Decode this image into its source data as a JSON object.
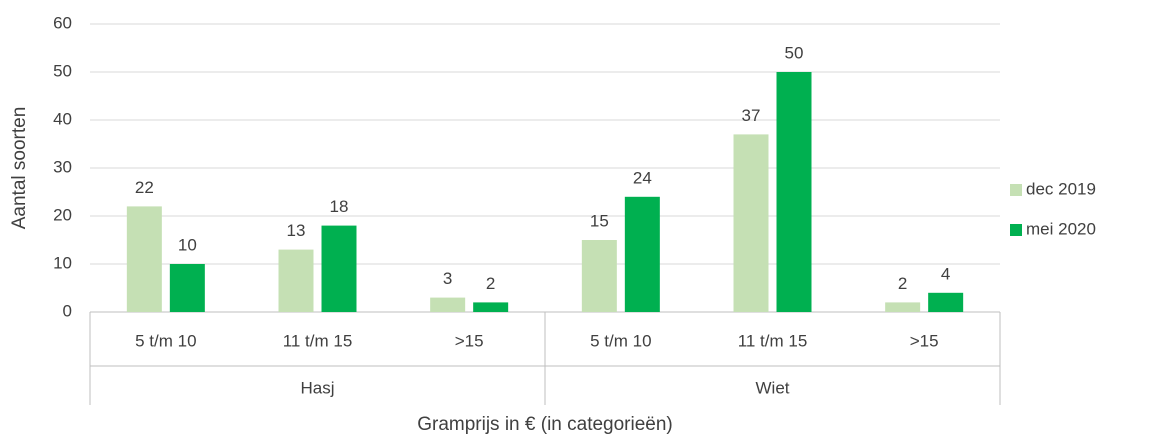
{
  "chart_data": {
    "type": "bar",
    "x_label": "Gramprijs in € (in categorieën)",
    "y_label": "Aantal soorten",
    "categories": [
      "5 t/m 10",
      "11 t/m 15",
      ">15",
      "5 t/m 10",
      "11 t/m 15",
      ">15"
    ],
    "group_labels": [
      "Hasj",
      "Wiet"
    ],
    "series": [
      {
        "name": "dec 2019",
        "color": "#c5e0b4",
        "values": [
          22,
          13,
          3,
          15,
          37,
          2
        ]
      },
      {
        "name": "mei 2020",
        "color": "#00b050",
        "values": [
          10,
          18,
          2,
          24,
          50,
          4
        ]
      }
    ],
    "ylim": [
      0,
      60
    ],
    "yticks": [
      0,
      10,
      20,
      30,
      40,
      50,
      60
    ],
    "grid": true,
    "legend": "right"
  }
}
